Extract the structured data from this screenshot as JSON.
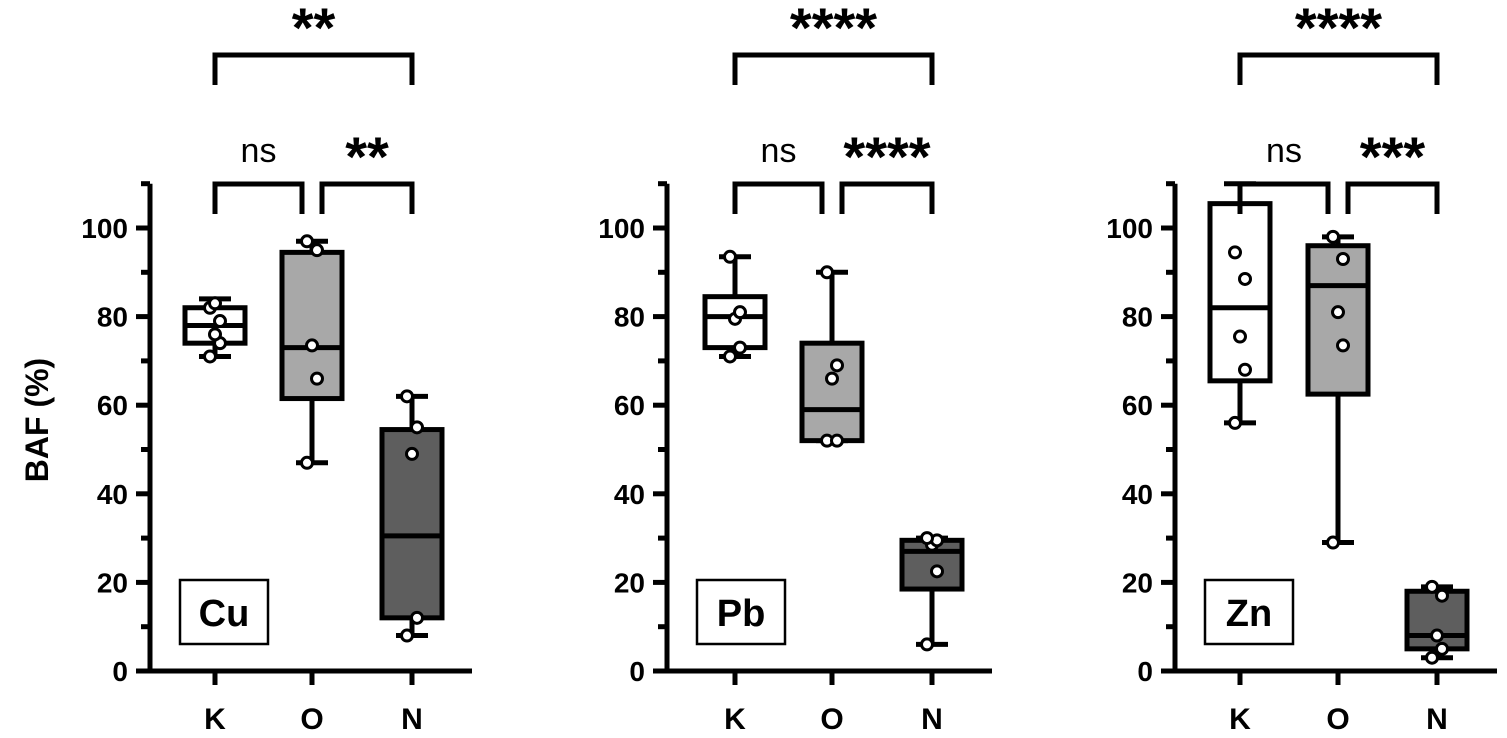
{
  "chart_data": [
    {
      "type": "box",
      "panel_label": "Cu",
      "ylabel": "BAF (%)",
      "ylim": [
        0,
        110
      ],
      "yticks": [
        0,
        20,
        40,
        60,
        80,
        100
      ],
      "categories": [
        "K",
        "O",
        "N"
      ],
      "fills": [
        "#ffffff",
        "#a8a8a8",
        "#5e5e5e"
      ],
      "boxes": [
        {
          "category": "K",
          "min": 71,
          "q1": 74,
          "median": 78,
          "q3": 82,
          "max": 84,
          "points": [
            71,
            74,
            76,
            79,
            82,
            83
          ]
        },
        {
          "category": "O",
          "min": 47,
          "q1": 61.5,
          "median": 73,
          "q3": 94.5,
          "max": 97,
          "points": [
            47,
            66,
            73.5,
            95,
            97
          ]
        },
        {
          "category": "N",
          "min": 8,
          "q1": 12,
          "median": 30.5,
          "q3": 54.5,
          "max": 62,
          "points": [
            8,
            12,
            49,
            55,
            62
          ]
        }
      ],
      "comparisons": [
        {
          "from": "K",
          "to": "O",
          "label": "ns",
          "level": 1
        },
        {
          "from": "O",
          "to": "N",
          "label": "**",
          "level": 1
        },
        {
          "from": "K",
          "to": "N",
          "label": "**",
          "level": 2
        }
      ]
    },
    {
      "type": "box",
      "panel_label": "Pb",
      "ylabel": "",
      "ylim": [
        0,
        110
      ],
      "yticks": [
        0,
        20,
        40,
        60,
        80,
        100
      ],
      "categories": [
        "K",
        "O",
        "N"
      ],
      "fills": [
        "#ffffff",
        "#a8a8a8",
        "#5e5e5e"
      ],
      "boxes": [
        {
          "category": "K",
          "min": 71,
          "q1": 73,
          "median": 80,
          "q3": 84.5,
          "max": 93.5,
          "points": [
            71,
            73,
            79.5,
            81,
            93.5
          ]
        },
        {
          "category": "O",
          "min": 52,
          "q1": 52,
          "median": 59,
          "q3": 74,
          "max": 90,
          "points": [
            52,
            52,
            66,
            69,
            90
          ]
        },
        {
          "category": "N",
          "min": 6,
          "q1": 18.5,
          "median": 27,
          "q3": 29.5,
          "max": 30,
          "points": [
            6,
            22.5,
            28.5,
            29.5,
            30
          ]
        }
      ],
      "comparisons": [
        {
          "from": "K",
          "to": "O",
          "label": "ns",
          "level": 1
        },
        {
          "from": "O",
          "to": "N",
          "label": "****",
          "level": 1
        },
        {
          "from": "K",
          "to": "N",
          "label": "****",
          "level": 2
        }
      ]
    },
    {
      "type": "box",
      "panel_label": "Zn",
      "ylabel": "",
      "ylim": [
        0,
        110
      ],
      "yticks": [
        0,
        20,
        40,
        60,
        80,
        100
      ],
      "categories": [
        "K",
        "O",
        "N"
      ],
      "fills": [
        "#ffffff",
        "#a8a8a8",
        "#5e5e5e"
      ],
      "boxes": [
        {
          "category": "K",
          "min": 56,
          "q1": 65.5,
          "median": 82,
          "q3": 105.5,
          "max": 110,
          "points": [
            56,
            68,
            75.5,
            88.5,
            94.5
          ]
        },
        {
          "category": "O",
          "min": 29,
          "q1": 62.5,
          "median": 87,
          "q3": 96,
          "max": 98,
          "points": [
            29,
            73.5,
            81,
            93,
            98
          ]
        },
        {
          "category": "N",
          "min": 3,
          "q1": 5,
          "median": 8,
          "q3": 18,
          "max": 19,
          "points": [
            3,
            5,
            8,
            17,
            19
          ]
        }
      ],
      "comparisons": [
        {
          "from": "K",
          "to": "O",
          "label": "ns",
          "level": 1
        },
        {
          "from": "O",
          "to": "N",
          "label": "***",
          "level": 1
        },
        {
          "from": "K",
          "to": "N",
          "label": "****",
          "level": 2
        }
      ]
    }
  ]
}
